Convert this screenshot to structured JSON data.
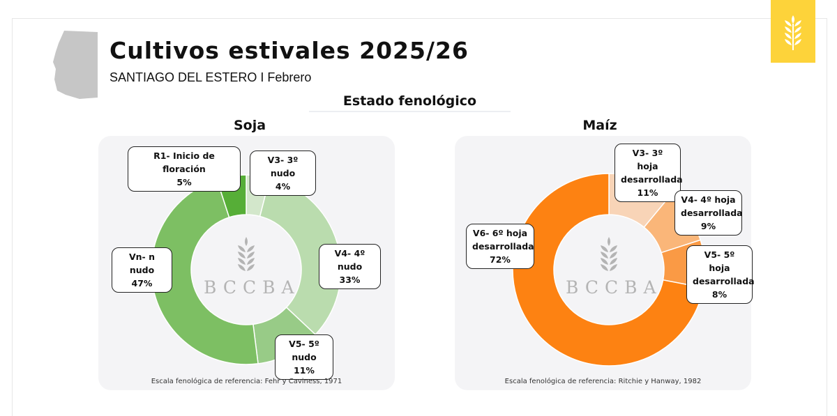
{
  "header": {
    "title": "Cultivos estivales 2025/26",
    "subtitle": "SANTIAGO DEL ESTERO I Febrero",
    "section_title": "Estado fenológico",
    "brand_color": "#fdd33a"
  },
  "watermark": "BCCBA",
  "chart_data": [
    {
      "type": "pie",
      "title": "Soja",
      "donut": true,
      "categories": [
        "V3- 3º nudo",
        "V4- 4º nudo",
        "V5- 5º nudo",
        "Vn- n nudo",
        "R1- Inicio de floración"
      ],
      "values": [
        4,
        33,
        11,
        47,
        5
      ],
      "labels": [
        "4%",
        "33%",
        "11%",
        "47%",
        "5%"
      ],
      "colors": [
        "#d3e7cb",
        "#badcae",
        "#98cb87",
        "#7dbf63",
        "#56ae37"
      ],
      "note": "Escala fenológica de referencia: Fehr y Caviness, 1971"
    },
    {
      "type": "pie",
      "title": "Maíz",
      "donut": true,
      "categories": [
        "V3- 3º hoja desarrollada",
        "V4- 4º hoja desarrollada",
        "V5- 5º hoja desarrollada",
        "V6- 6º hoja desarrollada"
      ],
      "values": [
        11,
        9,
        8,
        72
      ],
      "labels": [
        "11%",
        "9%",
        "8%",
        "72%"
      ],
      "colors": [
        "#f8d4b7",
        "#fab679",
        "#fa9a45",
        "#fd8212"
      ],
      "note": "Escala fenológica de referencia: Ritchie y Hanway, 1982"
    }
  ]
}
